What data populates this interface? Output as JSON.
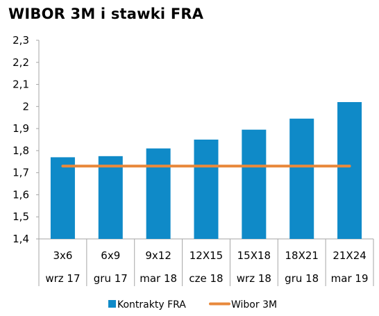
{
  "chart_data": {
    "type": "bar",
    "title": "WIBOR 3M i stawki FRA",
    "categories": [
      "3x6",
      "6x9",
      "9x12",
      "12X15",
      "15X18",
      "18X21",
      "21X24"
    ],
    "categories_secondary": [
      "wrz 17",
      "gru 17",
      "mar 18",
      "cze 18",
      "wrz 18",
      "gru 18",
      "mar 19"
    ],
    "series": [
      {
        "name": "Kontrakty FRA",
        "type": "bar",
        "color": "#0F8AC8",
        "values": [
          1.77,
          1.775,
          1.81,
          1.85,
          1.895,
          1.945,
          2.02
        ]
      },
      {
        "name": "Wibor 3M",
        "type": "line",
        "color": "#E8893C",
        "values": [
          1.73,
          1.73,
          1.73,
          1.73,
          1.73,
          1.73,
          1.73
        ]
      }
    ],
    "ylim": [
      1.4,
      2.3
    ],
    "yticks": [
      "1,4",
      "1,5",
      "1,6",
      "1,7",
      "1,8",
      "1,9",
      "2",
      "2,1",
      "2,2",
      "2,3"
    ],
    "grid": false,
    "legend_position": "bottom"
  }
}
